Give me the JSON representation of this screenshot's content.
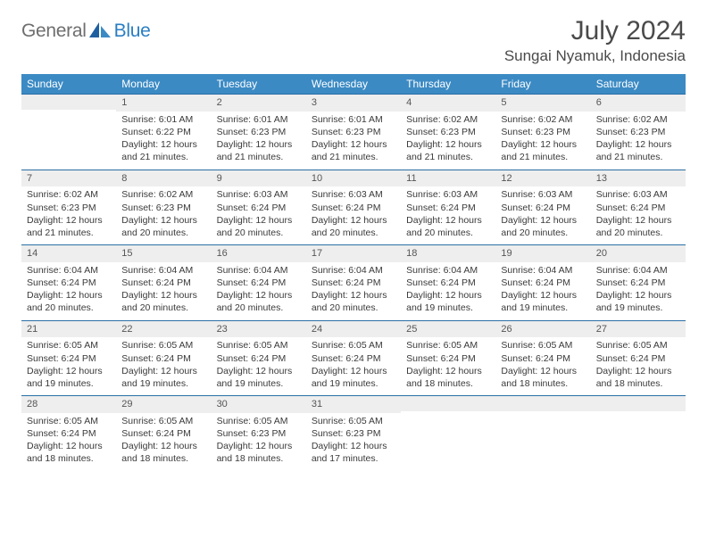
{
  "brand": {
    "word1": "General",
    "word2": "Blue"
  },
  "title": "July 2024",
  "location": "Sungai Nyamuk, Indonesia",
  "colors": {
    "header_bg": "#3b8ac4",
    "header_text": "#ffffff",
    "week_divider": "#2a6fa5",
    "daynum_bg": "#eeeeee",
    "text": "#3a3a3a",
    "logo_grey": "#6e6e6e",
    "logo_blue": "#2a7ec2"
  },
  "weekdays": [
    "Sunday",
    "Monday",
    "Tuesday",
    "Wednesday",
    "Thursday",
    "Friday",
    "Saturday"
  ],
  "weeks": [
    [
      {
        "n": "",
        "sunrise": "",
        "sunset": "",
        "daylight": ""
      },
      {
        "n": "1",
        "sunrise": "6:01 AM",
        "sunset": "6:22 PM",
        "daylight": "12 hours and 21 minutes."
      },
      {
        "n": "2",
        "sunrise": "6:01 AM",
        "sunset": "6:23 PM",
        "daylight": "12 hours and 21 minutes."
      },
      {
        "n": "3",
        "sunrise": "6:01 AM",
        "sunset": "6:23 PM",
        "daylight": "12 hours and 21 minutes."
      },
      {
        "n": "4",
        "sunrise": "6:02 AM",
        "sunset": "6:23 PM",
        "daylight": "12 hours and 21 minutes."
      },
      {
        "n": "5",
        "sunrise": "6:02 AM",
        "sunset": "6:23 PM",
        "daylight": "12 hours and 21 minutes."
      },
      {
        "n": "6",
        "sunrise": "6:02 AM",
        "sunset": "6:23 PM",
        "daylight": "12 hours and 21 minutes."
      }
    ],
    [
      {
        "n": "7",
        "sunrise": "6:02 AM",
        "sunset": "6:23 PM",
        "daylight": "12 hours and 21 minutes."
      },
      {
        "n": "8",
        "sunrise": "6:02 AM",
        "sunset": "6:23 PM",
        "daylight": "12 hours and 20 minutes."
      },
      {
        "n": "9",
        "sunrise": "6:03 AM",
        "sunset": "6:24 PM",
        "daylight": "12 hours and 20 minutes."
      },
      {
        "n": "10",
        "sunrise": "6:03 AM",
        "sunset": "6:24 PM",
        "daylight": "12 hours and 20 minutes."
      },
      {
        "n": "11",
        "sunrise": "6:03 AM",
        "sunset": "6:24 PM",
        "daylight": "12 hours and 20 minutes."
      },
      {
        "n": "12",
        "sunrise": "6:03 AM",
        "sunset": "6:24 PM",
        "daylight": "12 hours and 20 minutes."
      },
      {
        "n": "13",
        "sunrise": "6:03 AM",
        "sunset": "6:24 PM",
        "daylight": "12 hours and 20 minutes."
      }
    ],
    [
      {
        "n": "14",
        "sunrise": "6:04 AM",
        "sunset": "6:24 PM",
        "daylight": "12 hours and 20 minutes."
      },
      {
        "n": "15",
        "sunrise": "6:04 AM",
        "sunset": "6:24 PM",
        "daylight": "12 hours and 20 minutes."
      },
      {
        "n": "16",
        "sunrise": "6:04 AM",
        "sunset": "6:24 PM",
        "daylight": "12 hours and 20 minutes."
      },
      {
        "n": "17",
        "sunrise": "6:04 AM",
        "sunset": "6:24 PM",
        "daylight": "12 hours and 20 minutes."
      },
      {
        "n": "18",
        "sunrise": "6:04 AM",
        "sunset": "6:24 PM",
        "daylight": "12 hours and 19 minutes."
      },
      {
        "n": "19",
        "sunrise": "6:04 AM",
        "sunset": "6:24 PM",
        "daylight": "12 hours and 19 minutes."
      },
      {
        "n": "20",
        "sunrise": "6:04 AM",
        "sunset": "6:24 PM",
        "daylight": "12 hours and 19 minutes."
      }
    ],
    [
      {
        "n": "21",
        "sunrise": "6:05 AM",
        "sunset": "6:24 PM",
        "daylight": "12 hours and 19 minutes."
      },
      {
        "n": "22",
        "sunrise": "6:05 AM",
        "sunset": "6:24 PM",
        "daylight": "12 hours and 19 minutes."
      },
      {
        "n": "23",
        "sunrise": "6:05 AM",
        "sunset": "6:24 PM",
        "daylight": "12 hours and 19 minutes."
      },
      {
        "n": "24",
        "sunrise": "6:05 AM",
        "sunset": "6:24 PM",
        "daylight": "12 hours and 19 minutes."
      },
      {
        "n": "25",
        "sunrise": "6:05 AM",
        "sunset": "6:24 PM",
        "daylight": "12 hours and 18 minutes."
      },
      {
        "n": "26",
        "sunrise": "6:05 AM",
        "sunset": "6:24 PM",
        "daylight": "12 hours and 18 minutes."
      },
      {
        "n": "27",
        "sunrise": "6:05 AM",
        "sunset": "6:24 PM",
        "daylight": "12 hours and 18 minutes."
      }
    ],
    [
      {
        "n": "28",
        "sunrise": "6:05 AM",
        "sunset": "6:24 PM",
        "daylight": "12 hours and 18 minutes."
      },
      {
        "n": "29",
        "sunrise": "6:05 AM",
        "sunset": "6:24 PM",
        "daylight": "12 hours and 18 minutes."
      },
      {
        "n": "30",
        "sunrise": "6:05 AM",
        "sunset": "6:23 PM",
        "daylight": "12 hours and 18 minutes."
      },
      {
        "n": "31",
        "sunrise": "6:05 AM",
        "sunset": "6:23 PM",
        "daylight": "12 hours and 17 minutes."
      },
      {
        "n": "",
        "sunrise": "",
        "sunset": "",
        "daylight": ""
      },
      {
        "n": "",
        "sunrise": "",
        "sunset": "",
        "daylight": ""
      },
      {
        "n": "",
        "sunrise": "",
        "sunset": "",
        "daylight": ""
      }
    ]
  ],
  "labels": {
    "sunrise": "Sunrise:",
    "sunset": "Sunset:",
    "daylight": "Daylight:"
  }
}
